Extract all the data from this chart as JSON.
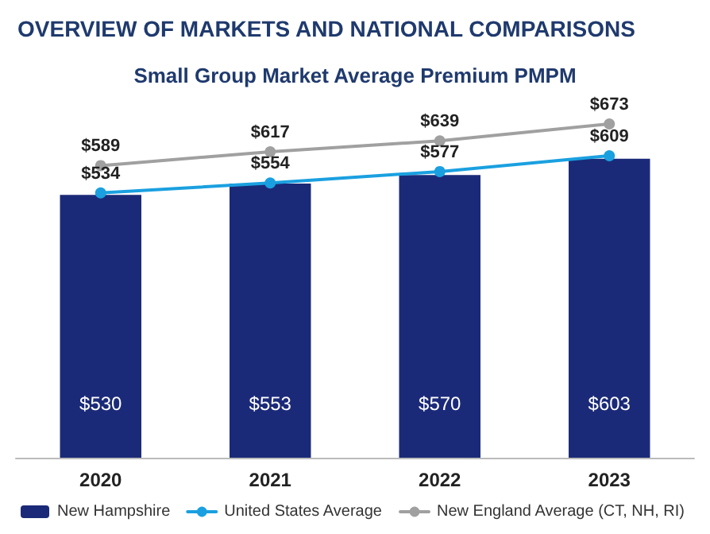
{
  "chart_data": {
    "type": "bar",
    "title": "OVERVIEW OF MARKETS AND NATIONAL COMPARISONS",
    "subtitle": "Small Group Market Average Premium PMPM",
    "categories": [
      "2020",
      "2021",
      "2022",
      "2023"
    ],
    "series": [
      {
        "name": "New Hampshire",
        "color": "#1b2a78",
        "values": [
          530,
          553,
          570,
          603
        ],
        "value_labels": [
          "$530",
          "$553",
          "$570",
          "$603"
        ]
      },
      {
        "name": "United States Average",
        "type": "line",
        "color": "#1aa0e0",
        "values": [
          534,
          554,
          577,
          609
        ],
        "value_labels": [
          "$534",
          "$554",
          "$577",
          "$609"
        ]
      },
      {
        "name": "New England Average (CT, NH, RI)",
        "type": "line",
        "color": "#a0a0a0",
        "values": [
          589,
          617,
          639,
          673
        ],
        "value_labels": [
          "$589",
          "$617",
          "$639",
          "$673"
        ]
      }
    ],
    "legend": "bottom left",
    "marker": "circle"
  }
}
